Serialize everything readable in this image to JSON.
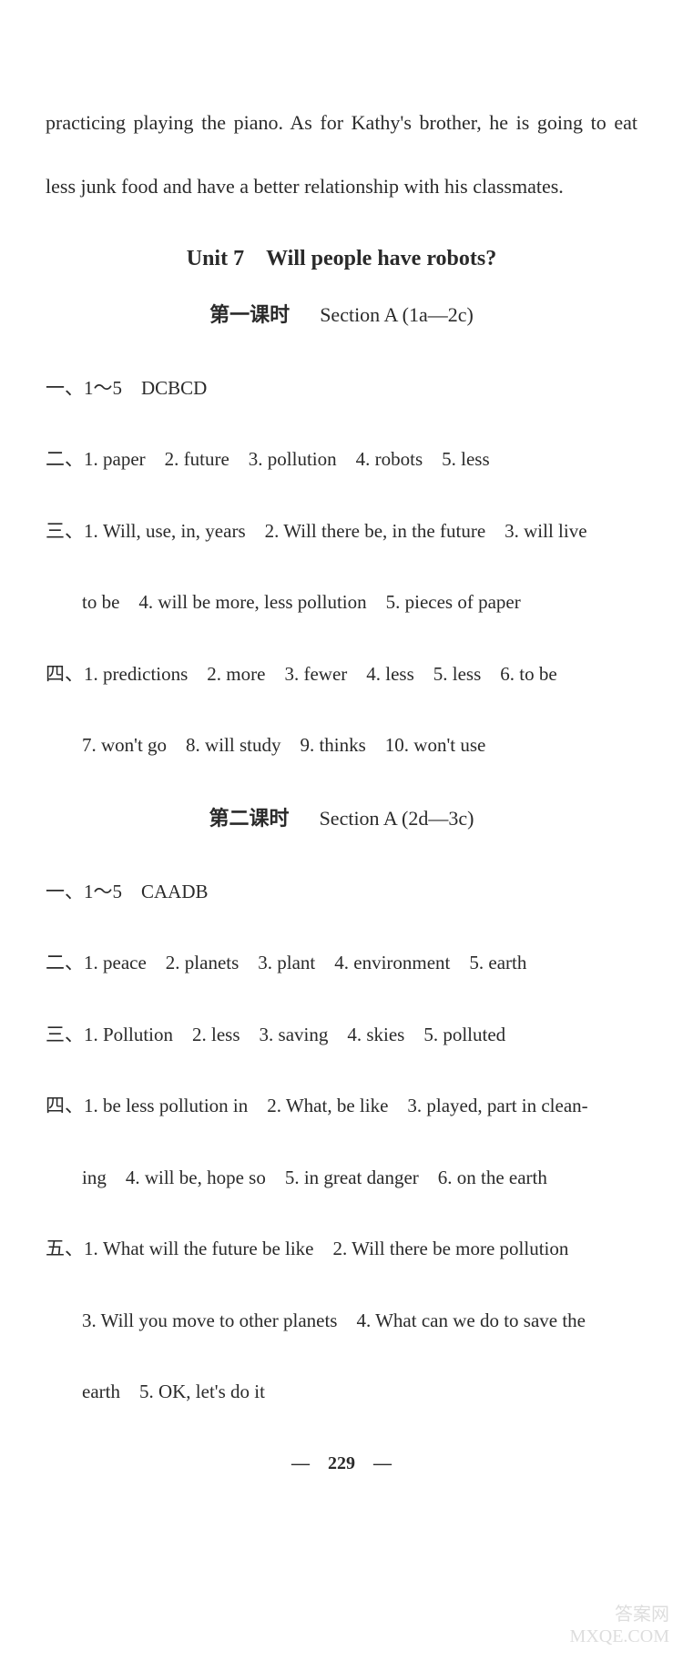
{
  "colors": {
    "background": "#ffffff",
    "text": "#2a2a2a",
    "watermark": "#d0d0d0"
  },
  "typography": {
    "body_fontsize": 22,
    "title_fontsize": 24,
    "font_family": "Times New Roman"
  },
  "intro_paragraph": "practicing playing the piano. As for Kathy's brother, he is going to eat less junk food and have a better relationship with his classmates.",
  "unit_title": "Unit 7 Will people have robots?",
  "lesson1": {
    "prefix": "第一课时",
    "section": "Section A (1a—2c)",
    "q1": "一、1～5 DCBCD",
    "q2": "二、1. paper 2. future 3. pollution 4. robots 5. less",
    "q3_line1": "三、1. Will, use, in, years 2. Will there be, in the future 3. will live",
    "q3_line2": "to be 4. will be more, less pollution 5. pieces of paper",
    "q4_line1": "四、1. predictions 2. more 3. fewer 4. less 5. less 6. to be",
    "q4_line2": "7. won't go 8. will study 9. thinks 10. won't use"
  },
  "lesson2": {
    "prefix": "第二课时",
    "section": "Section A (2d—3c)",
    "q1": "一、1～5 CAADB",
    "q2": "二、1. peace 2. planets 3. plant 4. environment 5. earth",
    "q3": "三、1. Pollution 2. less 3. saving 4. skies 5. polluted",
    "q4_line1": "四、1. be less pollution in 2. What, be like 3. played, part in clean-",
    "q4_line2": "ing 4. will be, hope so 5. in great danger 6. on the earth",
    "q5_line1": "五、1. What will the future be like 2. Will there be more pollution",
    "q5_line2": "3. Will you move to other planets 4. What can we do to save the",
    "q5_line3": "earth 5. OK, let's do it"
  },
  "page_number": "— 229 —",
  "watermark": "答案网\nMXQE.COM"
}
